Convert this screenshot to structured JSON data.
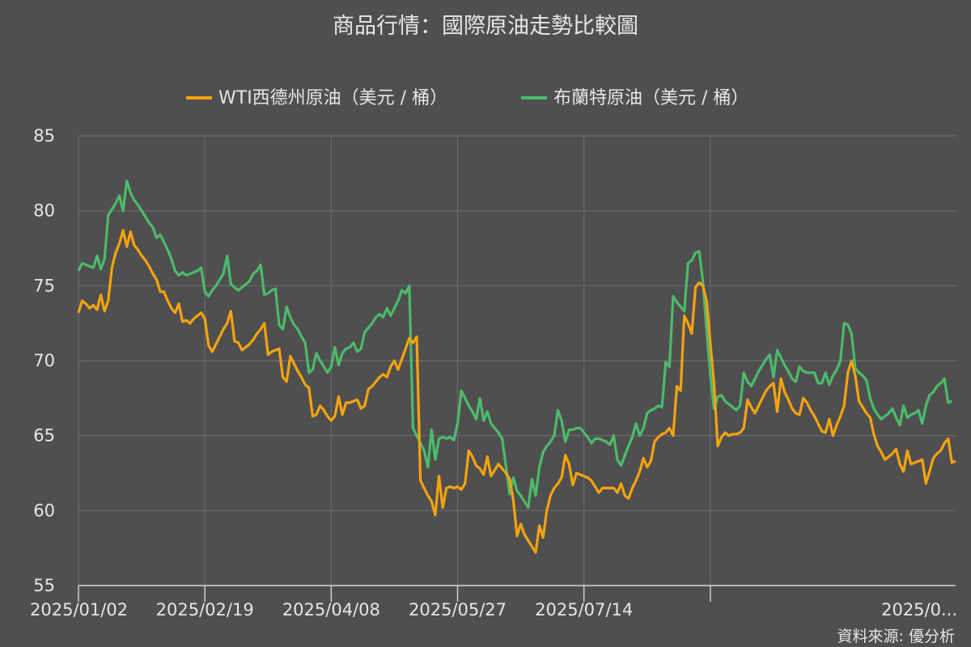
{
  "chart_data": {
    "type": "line",
    "title": "商品行情：國際原油走勢比較圖",
    "source": "資料來源: 優分析",
    "ylim": [
      55,
      85
    ],
    "yticks": [
      55,
      60,
      65,
      70,
      75,
      80,
      85
    ],
    "x_tick_labels": [
      "2025/01/02",
      "2025/02/19",
      "2025/04/08",
      "2025/05/27",
      "2025/07/14",
      "2025/0..."
    ],
    "x_tick_positions": [
      0,
      34,
      68,
      102,
      136,
      170
    ],
    "grid": true,
    "legend_position": "top",
    "series": [
      {
        "name": "WTI西德州原油（美元 / 桶）",
        "color": "#f5a30f",
        "values": [
          73.2,
          74.0,
          73.8,
          73.5,
          73.7,
          73.4,
          74.4,
          73.3,
          74.0,
          76.2,
          77.2,
          77.8,
          78.7,
          77.6,
          78.6,
          77.7,
          77.4,
          77.0,
          76.7,
          76.3,
          75.8,
          75.4,
          74.6,
          74.6,
          74.0,
          73.5,
          73.2,
          73.8,
          72.6,
          72.7,
          72.5,
          72.8,
          73.0,
          73.2,
          72.8,
          71.0,
          70.6,
          71.1,
          71.6,
          72.1,
          72.5,
          73.3,
          71.3,
          71.2,
          70.7,
          70.9,
          71.1,
          71.4,
          71.8,
          72.1,
          72.5,
          70.4,
          70.6,
          70.7,
          70.8,
          68.9,
          68.6,
          70.3,
          69.8,
          69.3,
          68.9,
          68.4,
          68.2,
          66.3,
          66.4,
          67.0,
          66.7,
          66.3,
          66.0,
          66.3,
          67.6,
          66.4,
          67.2,
          67.2,
          67.3,
          67.4,
          66.8,
          67.0,
          68.1,
          68.3,
          68.6,
          68.9,
          69.1,
          68.9,
          69.6,
          70.0,
          69.4,
          70.1,
          70.8,
          71.5,
          71.2,
          71.6,
          62.0,
          61.5,
          61.0,
          60.6,
          59.7,
          62.3,
          60.2,
          61.5,
          61.6,
          61.5,
          61.6,
          61.4,
          61.8,
          64.0,
          63.6,
          63.0,
          62.8,
          62.4,
          63.6,
          62.3,
          62.7,
          63.1,
          62.8,
          62.5,
          62.1,
          60.7,
          58.3,
          59.1,
          58.4,
          58.0,
          57.6,
          57.2,
          59.0,
          58.2,
          60.0,
          61.0,
          61.5,
          61.8,
          62.2,
          63.7,
          63.1,
          61.7,
          62.5,
          62.4,
          62.3,
          62.2,
          62.0,
          61.6,
          61.2,
          61.5,
          61.5,
          61.5,
          61.5,
          61.2,
          61.8,
          61.0,
          60.8,
          61.5,
          62.0,
          62.6,
          63.5,
          62.9,
          63.3,
          64.6,
          64.9,
          65.1,
          65.2,
          65.5,
          65.0,
          68.3,
          68.0,
          73.0,
          72.5,
          71.8,
          74.9,
          75.2,
          75.0,
          74.0,
          71.2,
          68.5,
          64.3,
          64.9,
          65.2,
          65.0,
          65.1,
          65.1,
          65.2,
          65.5,
          67.4,
          66.9,
          66.5,
          67.0,
          67.5,
          68.0,
          68.3,
          68.5,
          66.6,
          68.8,
          67.9,
          67.4,
          66.8,
          66.5,
          66.4,
          67.5,
          67.2,
          66.7,
          66.3,
          65.8,
          65.3,
          65.2,
          66.1,
          65.0,
          65.7,
          66.3,
          67.0,
          69.2,
          70.0,
          69.0,
          67.3,
          66.9,
          66.5,
          66.2,
          65.1,
          64.3,
          63.9,
          63.4,
          63.6,
          63.8,
          64.1,
          63.1,
          62.6,
          64.0,
          63.1,
          63.2,
          63.3,
          63.4,
          61.8,
          62.6,
          63.5,
          63.8,
          64.0,
          64.5,
          64.8,
          63.2,
          63.3
        ]
      },
      {
        "name": "布蘭特原油（美元 / 桶）",
        "color": "#4cbb6c",
        "values": [
          76.0,
          76.5,
          76.4,
          76.3,
          76.2,
          77.0,
          76.1,
          76.8,
          79.7,
          80.1,
          80.5,
          81.0,
          80.0,
          82.0,
          81.2,
          80.7,
          80.4,
          80.0,
          79.6,
          79.2,
          78.9,
          78.2,
          78.4,
          77.9,
          77.4,
          76.8,
          76.0,
          75.7,
          75.9,
          75.7,
          75.8,
          75.9,
          76.0,
          76.2,
          74.6,
          74.3,
          74.7,
          75.0,
          75.4,
          75.8,
          77.0,
          75.1,
          74.9,
          74.7,
          74.9,
          75.1,
          75.3,
          75.8,
          76.0,
          76.4,
          74.4,
          74.5,
          74.7,
          74.8,
          72.4,
          72.1,
          73.6,
          72.9,
          72.4,
          72.1,
          71.6,
          71.2,
          69.2,
          69.4,
          70.5,
          70.0,
          69.6,
          69.2,
          69.6,
          70.9,
          69.7,
          70.5,
          70.8,
          70.9,
          71.2,
          70.6,
          70.8,
          71.9,
          72.2,
          72.5,
          72.9,
          73.1,
          72.9,
          73.5,
          73.0,
          73.5,
          74.0,
          74.7,
          74.5,
          75.0,
          65.5,
          65.0,
          64.5,
          64.0,
          62.9,
          65.4,
          63.4,
          64.8,
          64.9,
          64.8,
          64.9,
          64.7,
          65.8,
          68.0,
          67.5,
          67.0,
          66.6,
          66.1,
          67.5,
          66.0,
          66.6,
          65.8,
          65.5,
          65.2,
          64.8,
          63.0,
          61.1,
          62.2,
          61.3,
          61.0,
          60.6,
          60.2,
          62.1,
          61.0,
          62.9,
          63.9,
          64.3,
          64.6,
          65.0,
          66.7,
          66.0,
          64.6,
          65.4,
          65.4,
          65.5,
          65.5,
          65.2,
          64.9,
          64.5,
          64.8,
          64.8,
          64.7,
          64.6,
          64.4,
          65.0,
          63.4,
          63.0,
          63.7,
          64.3,
          64.9,
          65.8,
          65.0,
          65.5,
          66.5,
          66.7,
          66.8,
          67.0,
          66.9,
          69.9,
          69.6,
          74.3,
          73.9,
          73.6,
          73.3,
          76.5,
          76.7,
          77.2,
          77.3,
          75.3,
          72.0,
          69.1,
          66.8,
          67.6,
          67.7,
          67.3,
          67.1,
          66.9,
          66.7,
          67.0,
          69.2,
          68.6,
          68.3,
          68.8,
          69.3,
          69.7,
          70.1,
          70.4,
          68.9,
          70.7,
          70.2,
          69.7,
          69.3,
          68.8,
          68.6,
          69.6,
          69.3,
          69.2,
          69.2,
          69.2,
          68.5,
          68.5,
          69.2,
          68.4,
          69.0,
          69.4,
          70.0,
          72.5,
          72.4,
          71.8,
          69.5,
          69.2,
          69.0,
          68.7,
          67.5,
          66.8,
          66.4,
          66.1,
          66.3,
          66.5,
          66.8,
          66.2,
          65.7,
          67.0,
          66.2,
          66.4,
          66.5,
          66.7,
          65.8,
          67.0,
          67.7,
          67.9,
          68.3,
          68.5,
          68.8,
          67.2,
          67.3
        ]
      }
    ]
  }
}
